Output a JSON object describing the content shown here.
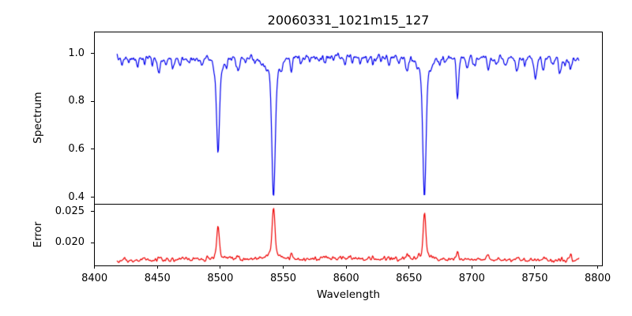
{
  "chart_data": {
    "type": "line",
    "title": "20060331_1021m15_127",
    "xlabel": "Wavelength",
    "xlim": [
      8399.6,
      8803.4
    ],
    "x_data_range": [
      8418,
      8785
    ],
    "x_step": 0.5,
    "x_ticks": [
      8400,
      8450,
      8500,
      8550,
      8600,
      8650,
      8700,
      8750,
      8800
    ],
    "x_tick_labels": [
      "8400",
      "8450",
      "8500",
      "8550",
      "8600",
      "8650",
      "8700",
      "8750",
      "8800"
    ],
    "grid": false,
    "legend": "none",
    "background": "#ffffff",
    "seed": 7,
    "panels": [
      {
        "name": "spectrum",
        "ylabel": "Spectrum",
        "ylim": [
          0.372,
          1.092
        ],
        "y_ticks": [
          1.0,
          0.8,
          0.6,
          0.4
        ],
        "y_tick_labels": [
          "1.0",
          "0.8",
          "0.6",
          "0.4"
        ],
        "line_color": "#0000ee",
        "continuum_base": 0.978,
        "continuum_hump": {
          "amp": 0.009,
          "center": 8590,
          "sigma": 100
        },
        "noise_sigma": 0.0085,
        "noise_down_bias": 1.55,
        "absorption_lines": [
          {
            "center": 8498.2,
            "depth": 0.34,
            "sigma": 1.1,
            "wing_depth": 0.06,
            "wing_sigma": 3.5
          },
          {
            "center": 8542.3,
            "depth": 0.5,
            "sigma": 1.3,
            "wing_depth": 0.075,
            "wing_sigma": 5.0
          },
          {
            "center": 8662.3,
            "depth": 0.5,
            "sigma": 1.25,
            "wing_depth": 0.075,
            "wing_sigma": 4.5
          }
        ],
        "minor_lines": [
          [
            8422.5,
            0.022,
            0.8
          ],
          [
            8427,
            0.018,
            0.7
          ],
          [
            8434,
            0.032,
            0.9
          ],
          [
            8440,
            0.02,
            0.7
          ],
          [
            8446,
            0.022,
            0.7
          ],
          [
            8451.5,
            0.058,
            1.1
          ],
          [
            8457,
            0.025,
            0.8
          ],
          [
            8462.5,
            0.042,
            0.9
          ],
          [
            8468,
            0.032,
            0.8
          ],
          [
            8475,
            0.02,
            0.7
          ],
          [
            8480,
            0.018,
            0.7
          ],
          [
            8486,
            0.022,
            0.7
          ],
          [
            8505,
            0.025,
            0.8
          ],
          [
            8514,
            0.048,
            1.0
          ],
          [
            8520,
            0.02,
            0.7
          ],
          [
            8527,
            0.028,
            0.8
          ],
          [
            8533,
            0.022,
            0.7
          ],
          [
            8548.5,
            0.03,
            0.8
          ],
          [
            8556.5,
            0.052,
            0.9
          ],
          [
            8564,
            0.022,
            0.7
          ],
          [
            8571,
            0.02,
            0.7
          ],
          [
            8577,
            0.018,
            0.7
          ],
          [
            8583,
            0.024,
            0.8
          ],
          [
            8590,
            0.02,
            0.7
          ],
          [
            8599,
            0.028,
            0.8
          ],
          [
            8605,
            0.02,
            0.7
          ],
          [
            8611,
            0.022,
            0.7
          ],
          [
            8617,
            0.02,
            0.7
          ],
          [
            8621.5,
            0.028,
            0.8
          ],
          [
            8628,
            0.02,
            0.7
          ],
          [
            8634,
            0.024,
            0.7
          ],
          [
            8642,
            0.022,
            0.7
          ],
          [
            8648.5,
            0.05,
            1.0
          ],
          [
            8674.5,
            0.03,
            0.8
          ],
          [
            8679,
            0.028,
            0.8
          ],
          [
            8688.6,
            0.17,
            0.9
          ],
          [
            8696,
            0.038,
            0.9
          ],
          [
            8702,
            0.028,
            0.8
          ],
          [
            8713,
            0.042,
            0.9
          ],
          [
            8719,
            0.028,
            0.8
          ],
          [
            8727,
            0.04,
            0.8
          ],
          [
            8736,
            0.055,
            0.9
          ],
          [
            8742,
            0.025,
            0.8
          ],
          [
            8750.5,
            0.09,
            0.9
          ],
          [
            8757,
            0.05,
            0.9
          ],
          [
            8764,
            0.03,
            0.8
          ],
          [
            8770,
            0.06,
            0.9
          ],
          [
            8778.5,
            0.045,
            0.9
          ]
        ]
      },
      {
        "name": "error",
        "ylabel": "Error",
        "ylim": [
          0.01635,
          0.02625
        ],
        "y_ticks": [
          0.025,
          0.02
        ],
        "y_tick_labels": [
          "0.025",
          "0.020"
        ],
        "line_color": "#ee0000",
        "baseline": 0.01705,
        "baseline_hump": {
          "amp": 0.0004,
          "center": 8600,
          "sigma": 110
        },
        "noise_sigma": 0.00022,
        "noise_up_bias": 1.4,
        "peaks": [
          {
            "center": 8498.2,
            "amp": 0.0046,
            "sigma": 1.0,
            "wing_amp": 0.0006,
            "wing_sigma": 3.5
          },
          {
            "center": 8542.3,
            "amp": 0.0072,
            "sigma": 1.1,
            "wing_amp": 0.001,
            "wing_sigma": 4.5
          },
          {
            "center": 8662.3,
            "amp": 0.0065,
            "sigma": 1.0,
            "wing_amp": 0.0009,
            "wing_sigma": 4.0
          }
        ],
        "minor_peaks": [
          [
            8451.5,
            0.0005,
            1.0
          ],
          [
            8514,
            0.0005,
            1.0
          ],
          [
            8556.5,
            0.0009,
            0.9
          ],
          [
            8648.5,
            0.0005,
            0.9
          ],
          [
            8688.6,
            0.0011,
            0.9
          ],
          [
            8713,
            0.0005,
            0.9
          ],
          [
            8736,
            0.0005,
            0.9
          ],
          [
            8757,
            0.0004,
            0.9
          ],
          [
            8778,
            0.0005,
            0.9
          ]
        ]
      }
    ]
  }
}
